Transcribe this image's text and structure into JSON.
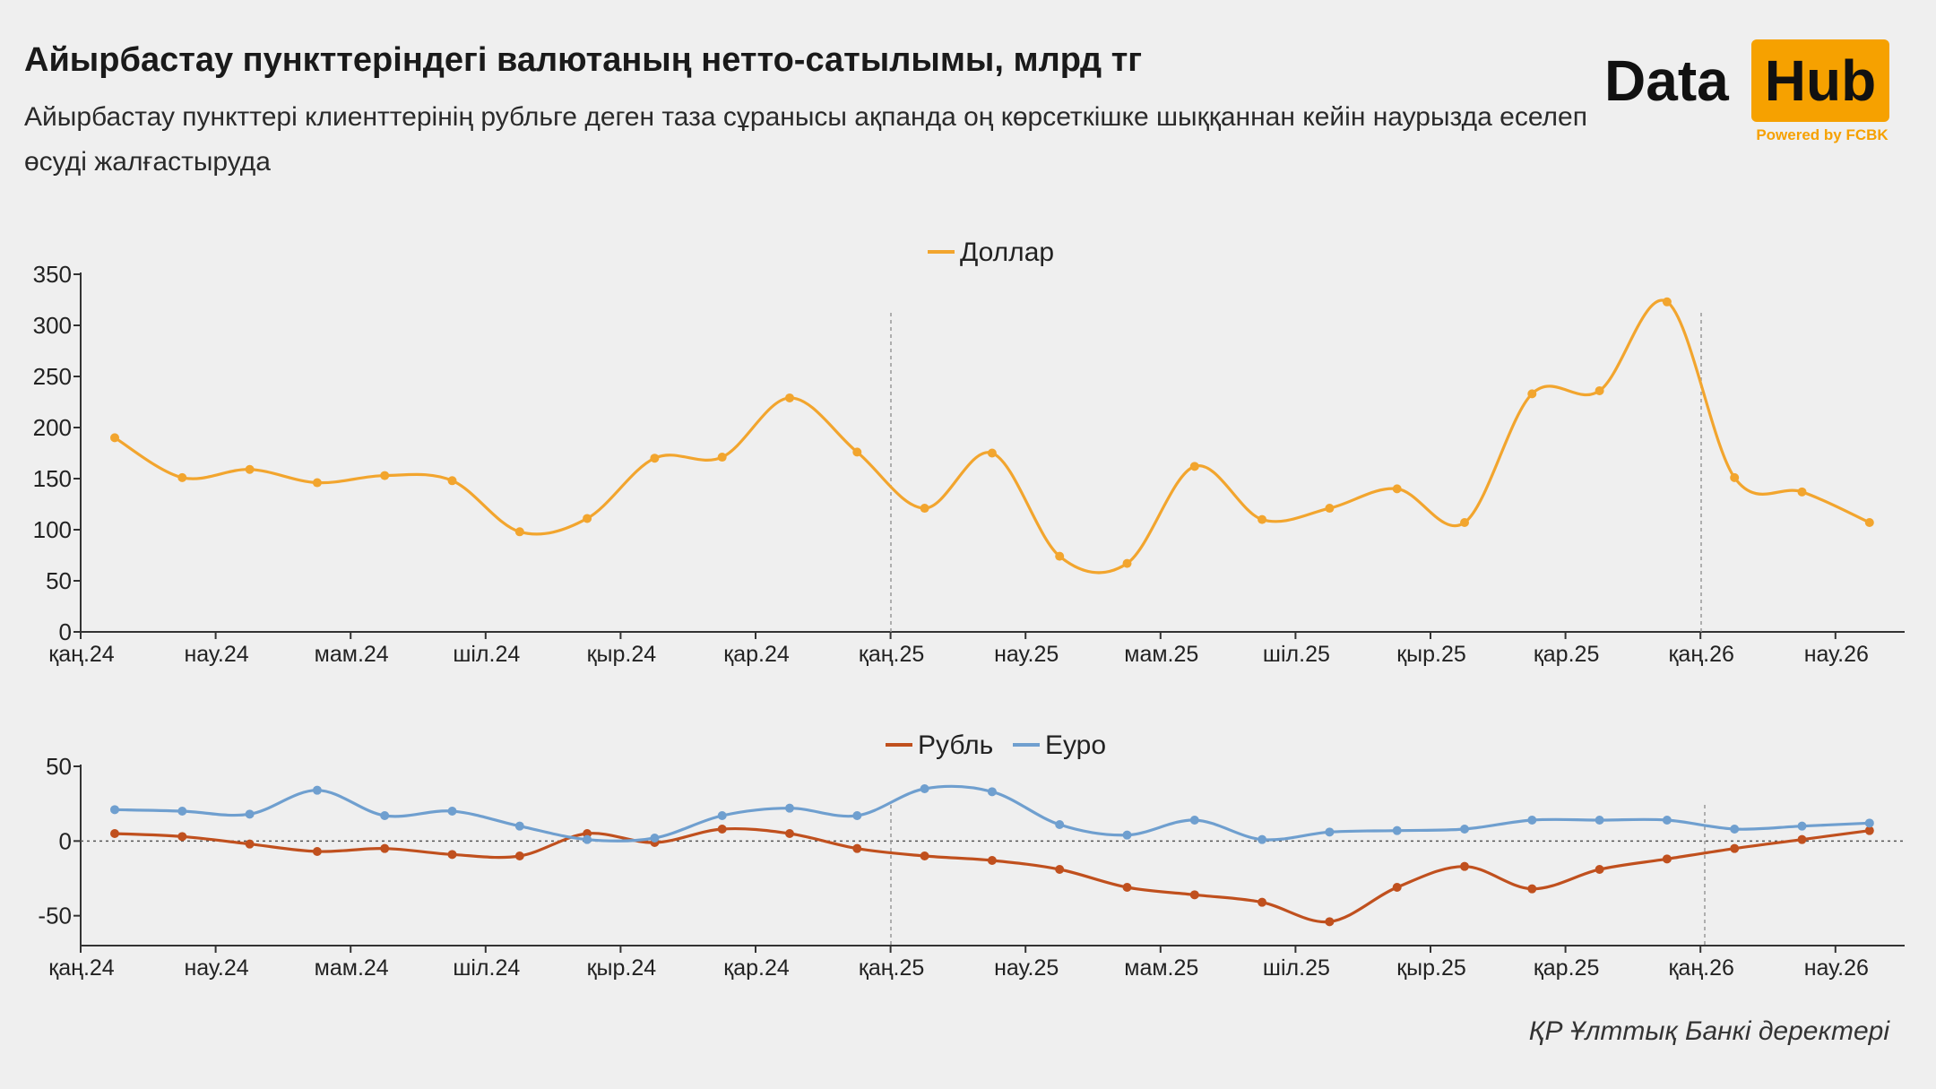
{
  "header": {
    "title": "Айырбастау пункттеріндегі валютаның нетто-сатылымы, млрд тг",
    "subtitle": "Айырбастау пункттері клиенттерінің рубльге деген таза сұранысы ақпанда оң көрсеткішке шыққаннан кейін наурызда еселеп өсуді жалғастыруда"
  },
  "logo": {
    "word1": "Data",
    "word2": "Hub",
    "powered": "Powered by FCBK"
  },
  "source": "ҚР Ұлттық Банкі деректері",
  "colors": {
    "dollar": "#f2a52e",
    "ruble": "#c0501e",
    "euro": "#6f9fcf",
    "axis": "#333333",
    "guide": "#999999"
  },
  "chart_data": [
    {
      "type": "line",
      "title": "",
      "ylim": [
        0,
        350
      ],
      "yticks": [
        "0",
        "50",
        "100",
        "150",
        "200",
        "250",
        "300",
        "350"
      ],
      "xtick_labels": [
        "қаң.24",
        "нау.24",
        "мам.24",
        "шіл.24",
        "қыр.24",
        "қар.24",
        "қаң.25",
        "нау.25",
        "мам.25",
        "шіл.25",
        "қыр.25",
        "қар.25",
        "қаң.26",
        "нау.26"
      ],
      "x_months": 27,
      "legend": "top-center",
      "series": [
        {
          "name": "Доллар",
          "color": "#f2a52e",
          "values": [
            190,
            151,
            159,
            146,
            153,
            148,
            98,
            111,
            170,
            171,
            229,
            176,
            121,
            175,
            74,
            67,
            162,
            110,
            121,
            140,
            107,
            233,
            236,
            323,
            151,
            137,
            107
          ]
        }
      ]
    },
    {
      "type": "line",
      "title": "",
      "ylim": [
        -70,
        50
      ],
      "yticks": [
        "-50",
        "0",
        "50"
      ],
      "xtick_labels": [
        "қаң.24",
        "нау.24",
        "мам.24",
        "шіл.24",
        "қыр.24",
        "қар.24",
        "қаң.25",
        "нау.25",
        "мам.25",
        "шіл.25",
        "қыр.25",
        "қар.25",
        "қаң.26",
        "нау.26"
      ],
      "x_months": 27,
      "legend": "top-center",
      "series": [
        {
          "name": "Рубль",
          "color": "#c0501e",
          "values": [
            5,
            3,
            -2,
            -7,
            -5,
            -9,
            -10,
            5,
            -1,
            8,
            5,
            -5,
            -10,
            -13,
            -19,
            -31,
            -36,
            -41,
            -54,
            -31,
            -17,
            -32,
            -19,
            -12,
            -5,
            1,
            7
          ]
        },
        {
          "name": "Еуро",
          "color": "#6f9fcf",
          "values": [
            21,
            20,
            18,
            34,
            17,
            20,
            10,
            1,
            2,
            17,
            22,
            17,
            35,
            33,
            11,
            4,
            14,
            1,
            6,
            7,
            8,
            14,
            14,
            14,
            8,
            10,
            12
          ]
        }
      ]
    }
  ]
}
